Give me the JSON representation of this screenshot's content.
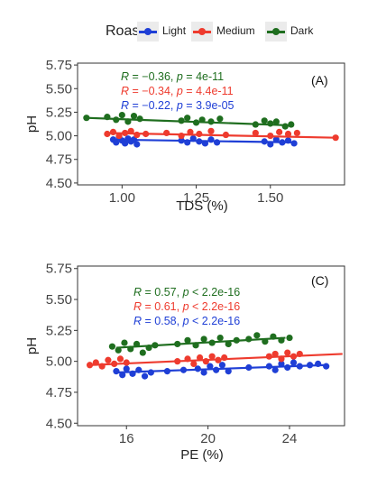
{
  "legend": {
    "title": "Roast",
    "items": [
      {
        "label": "Light",
        "color": "#1f3fd6"
      },
      {
        "label": "Medium",
        "color": "#ee3b2e"
      },
      {
        "label": "Dark",
        "color": "#1f6e1f"
      }
    ]
  },
  "chart_data": [
    {
      "type": "scatter",
      "panel_label": "(A)",
      "xlabel": "TDS (%)",
      "ylabel": "pH",
      "xlim": [
        0.85,
        1.75
      ],
      "ylim": [
        4.48,
        5.77
      ],
      "xticks": [
        "1.00",
        "1.25",
        "1.50"
      ],
      "xtick_values": [
        1.0,
        1.25,
        1.5
      ],
      "yticks": [
        "4.50",
        "4.75",
        "5.00",
        "5.25",
        "5.50",
        "5.75"
      ],
      "ytick_values": [
        4.5,
        4.75,
        5.0,
        5.25,
        5.5,
        5.75
      ],
      "annotations": [
        {
          "r": "−0.36",
          "p_op": "=",
          "p": "4e-11",
          "color": "#1f6e1f"
        },
        {
          "r": "−0.34",
          "p_op": "=",
          "p": "4.4e-11",
          "color": "#ee3b2e"
        },
        {
          "r": "−0.22",
          "p_op": "=",
          "p": "3.9e-05",
          "color": "#1f3fd6"
        }
      ],
      "series": [
        {
          "name": "Light",
          "color": "#1f3fd6",
          "fit": [
            [
              0.97,
              4.96
            ],
            [
              1.58,
              4.93
            ]
          ],
          "points": [
            [
              0.97,
              4.96
            ],
            [
              0.98,
              4.93
            ],
            [
              0.99,
              4.99
            ],
            [
              1.0,
              4.95
            ],
            [
              1.01,
              4.92
            ],
            [
              1.02,
              4.97
            ],
            [
              1.03,
              4.94
            ],
            [
              1.04,
              4.96
            ],
            [
              1.05,
              4.91
            ],
            [
              1.2,
              4.95
            ],
            [
              1.22,
              4.93
            ],
            [
              1.24,
              4.97
            ],
            [
              1.26,
              4.94
            ],
            [
              1.28,
              4.92
            ],
            [
              1.3,
              4.96
            ],
            [
              1.32,
              4.93
            ],
            [
              1.48,
              4.94
            ],
            [
              1.5,
              4.91
            ],
            [
              1.52,
              4.96
            ],
            [
              1.54,
              4.93
            ],
            [
              1.56,
              4.95
            ],
            [
              1.58,
              4.92
            ]
          ]
        },
        {
          "name": "Medium",
          "color": "#ee3b2e",
          "fit": [
            [
              0.95,
              5.03
            ],
            [
              1.72,
              4.98
            ]
          ],
          "points": [
            [
              0.95,
              5.02
            ],
            [
              0.97,
              5.04
            ],
            [
              0.99,
              5.0
            ],
            [
              1.01,
              5.03
            ],
            [
              1.03,
              5.05
            ],
            [
              1.05,
              5.01
            ],
            [
              1.08,
              5.02
            ],
            [
              1.15,
              5.03
            ],
            [
              1.2,
              5.0
            ],
            [
              1.23,
              5.04
            ],
            [
              1.26,
              5.02
            ],
            [
              1.3,
              5.05
            ],
            [
              1.35,
              5.01
            ],
            [
              1.45,
              5.03
            ],
            [
              1.5,
              5.0
            ],
            [
              1.53,
              5.04
            ],
            [
              1.56,
              5.02
            ],
            [
              1.59,
              5.03
            ],
            [
              1.72,
              4.98
            ]
          ]
        },
        {
          "name": "Dark",
          "color": "#1f6e1f",
          "fit": [
            [
              0.88,
              5.19
            ],
            [
              1.57,
              5.11
            ]
          ],
          "points": [
            [
              0.88,
              5.19
            ],
            [
              0.95,
              5.2
            ],
            [
              0.98,
              5.17
            ],
            [
              1.0,
              5.22
            ],
            [
              1.02,
              5.15
            ],
            [
              1.04,
              5.21
            ],
            [
              1.06,
              5.18
            ],
            [
              1.2,
              5.16
            ],
            [
              1.22,
              5.19
            ],
            [
              1.25,
              5.14
            ],
            [
              1.27,
              5.17
            ],
            [
              1.3,
              5.15
            ],
            [
              1.33,
              5.18
            ],
            [
              1.45,
              5.12
            ],
            [
              1.48,
              5.16
            ],
            [
              1.5,
              5.13
            ],
            [
              1.52,
              5.15
            ],
            [
              1.55,
              5.1
            ],
            [
              1.57,
              5.12
            ]
          ]
        }
      ]
    },
    {
      "type": "scatter",
      "panel_label": "(C)",
      "xlabel": "PE (%)",
      "ylabel": "pH",
      "xlim": [
        13.6,
        26.7
      ],
      "ylim": [
        4.48,
        5.77
      ],
      "xticks": [
        "16",
        "20",
        "24"
      ],
      "xtick_values": [
        16,
        20,
        24
      ],
      "yticks": [
        "4.50",
        "4.75",
        "5.00",
        "5.25",
        "5.50",
        "5.75"
      ],
      "ytick_values": [
        4.5,
        4.75,
        5.0,
        5.25,
        5.5,
        5.75
      ],
      "annotations": [
        {
          "r": "0.57",
          "p_op": "<",
          "p": "2.2e-16",
          "color": "#1f6e1f"
        },
        {
          "r": "0.61",
          "p_op": "<",
          "p": "2.2e-16",
          "color": "#ee3b2e"
        },
        {
          "r": "0.58",
          "p_op": "<",
          "p": "2.2e-16",
          "color": "#1f3fd6"
        }
      ],
      "series": [
        {
          "name": "Light",
          "color": "#1f3fd6",
          "fit": [
            [
              15.5,
              4.91
            ],
            [
              25.8,
              4.97
            ]
          ],
          "points": [
            [
              15.5,
              4.92
            ],
            [
              15.8,
              4.89
            ],
            [
              16.0,
              4.94
            ],
            [
              16.3,
              4.9
            ],
            [
              16.6,
              4.93
            ],
            [
              16.9,
              4.88
            ],
            [
              17.2,
              4.91
            ],
            [
              18.0,
              4.92
            ],
            [
              18.8,
              4.93
            ],
            [
              19.5,
              4.94
            ],
            [
              19.8,
              4.91
            ],
            [
              20.1,
              4.96
            ],
            [
              20.4,
              4.93
            ],
            [
              20.7,
              4.97
            ],
            [
              21.0,
              4.92
            ],
            [
              22.0,
              4.95
            ],
            [
              23.0,
              4.96
            ],
            [
              23.3,
              4.93
            ],
            [
              23.6,
              4.98
            ],
            [
              23.9,
              4.95
            ],
            [
              24.2,
              4.99
            ],
            [
              24.5,
              4.96
            ],
            [
              25.0,
              4.97
            ],
            [
              25.4,
              4.98
            ],
            [
              25.8,
              4.96
            ]
          ]
        },
        {
          "name": "Medium",
          "color": "#ee3b2e",
          "fit": [
            [
              14.2,
              4.97
            ],
            [
              26.6,
              5.06
            ]
          ],
          "points": [
            [
              14.2,
              4.97
            ],
            [
              14.5,
              4.99
            ],
            [
              14.8,
              4.96
            ],
            [
              15.1,
              5.01
            ],
            [
              15.4,
              4.98
            ],
            [
              15.7,
              5.02
            ],
            [
              16.0,
              4.99
            ],
            [
              18.5,
              5.0
            ],
            [
              19.0,
              5.02
            ],
            [
              19.3,
              4.98
            ],
            [
              19.6,
              5.03
            ],
            [
              19.9,
              5.0
            ],
            [
              20.2,
              5.04
            ],
            [
              20.5,
              5.01
            ],
            [
              20.8,
              5.03
            ],
            [
              23.0,
              5.04
            ],
            [
              23.3,
              5.06
            ],
            [
              23.6,
              5.02
            ],
            [
              23.9,
              5.07
            ],
            [
              24.2,
              5.04
            ],
            [
              24.5,
              5.06
            ]
          ]
        },
        {
          "name": "Dark",
          "color": "#1f6e1f",
          "fit": [
            [
              15.5,
              5.11
            ],
            [
              23.8,
              5.19
            ]
          ],
          "points": [
            [
              15.3,
              5.12
            ],
            [
              15.6,
              5.09
            ],
            [
              15.9,
              5.15
            ],
            [
              16.2,
              5.1
            ],
            [
              16.5,
              5.14
            ],
            [
              16.8,
              5.07
            ],
            [
              17.1,
              5.11
            ],
            [
              17.4,
              5.13
            ],
            [
              18.5,
              5.14
            ],
            [
              19.0,
              5.17
            ],
            [
              19.4,
              5.13
            ],
            [
              19.8,
              5.18
            ],
            [
              20.2,
              5.15
            ],
            [
              20.6,
              5.19
            ],
            [
              21.0,
              5.14
            ],
            [
              21.4,
              5.17
            ],
            [
              22.0,
              5.18
            ],
            [
              22.4,
              5.21
            ],
            [
              22.8,
              5.16
            ],
            [
              23.2,
              5.2
            ],
            [
              23.6,
              5.17
            ],
            [
              24.0,
              5.19
            ]
          ]
        }
      ]
    }
  ]
}
